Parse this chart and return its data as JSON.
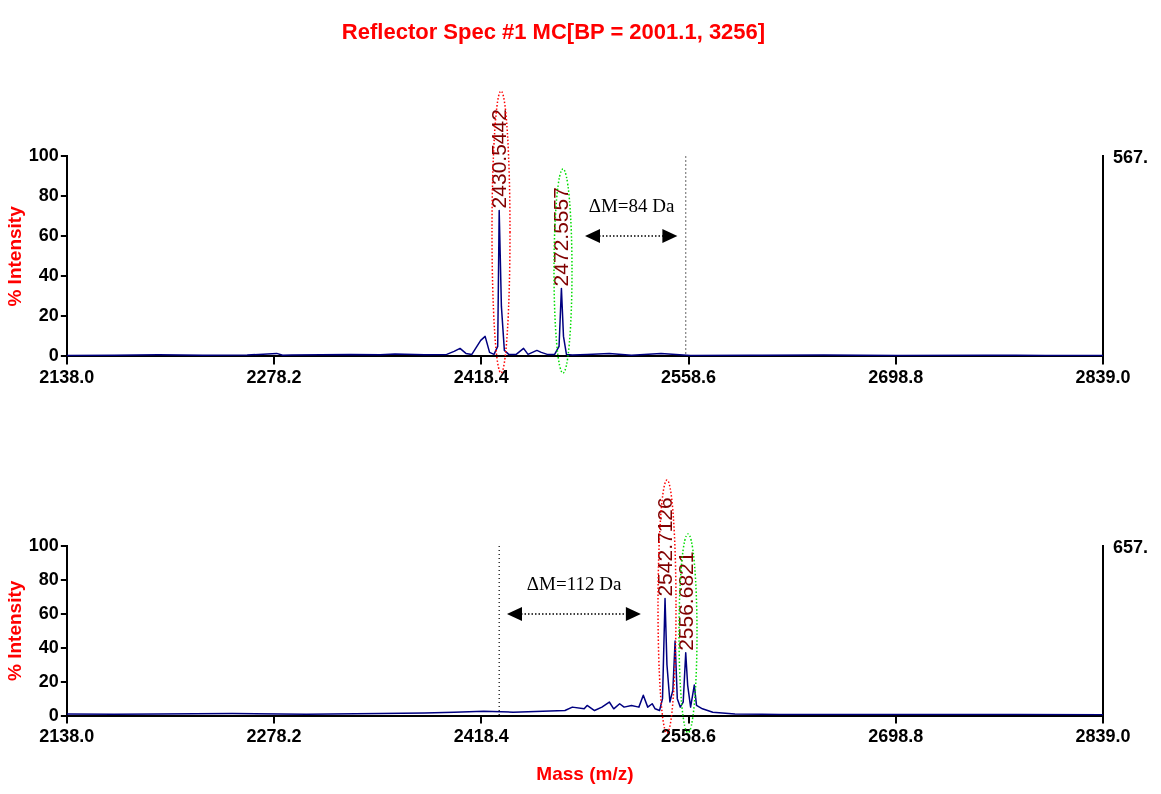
{
  "chart_data": [
    {
      "type": "line",
      "title": "Reflector Spec #1 MC[BP = 2001.1, 3256]",
      "ylabel": "% Intensity",
      "xlim": [
        2138,
        2839
      ],
      "xticks": [
        {
          "value": 2138,
          "label": "2138.0"
        },
        {
          "value": 2278.2,
          "label": "2278.2"
        },
        {
          "value": 2418.4,
          "label": "2418.4"
        },
        {
          "value": 2558.6,
          "label": "2558.6"
        },
        {
          "value": 2698.8,
          "label": "2698.8"
        },
        {
          "value": 2839,
          "label": "2839.0"
        }
      ],
      "ylim": [
        0,
        100
      ],
      "yticks": [
        0,
        20,
        40,
        60,
        80,
        100
      ],
      "y2label": "567.",
      "grid": false,
      "legend": false,
      "marker": "none",
      "series": [
        {
          "color": "#000080",
          "x": [
            2138,
            2170,
            2200,
            2230,
            2260,
            2280,
            2284,
            2290,
            2330,
            2350,
            2360,
            2380,
            2395,
            2400,
            2404,
            2408,
            2412,
            2418,
            2421,
            2424,
            2427,
            2429.5,
            2430.5,
            2432,
            2434,
            2437,
            2442,
            2447,
            2450,
            2456,
            2459,
            2463,
            2468,
            2471,
            2472.6,
            2474,
            2476,
            2480,
            2490,
            2505,
            2520,
            2540,
            2560,
            2600,
            2650,
            2700,
            2760,
            2800,
            2839
          ],
          "values": [
            0.5,
            0.6,
            0.8,
            0.6,
            0.7,
            1.5,
            0.6,
            0.7,
            1,
            0.8,
            1.2,
            0.8,
            1,
            2.5,
            4,
            1.5,
            1,
            8,
            10,
            2,
            1,
            5,
            73,
            25,
            3,
            1,
            1,
            4,
            1,
            3,
            2,
            1,
            1,
            5,
            34,
            10,
            1,
            0.7,
            1,
            1.5,
            0.6,
            1.5,
            0.5,
            0.6,
            0.7,
            0.5,
            0.6,
            0.5,
            0.5
          ]
        }
      ],
      "ref_lines": [
        {
          "axis": "x",
          "value": 2556.7,
          "line_style": "dotted",
          "color": "#000000"
        }
      ],
      "annotations": [
        {
          "text": "2430.5442",
          "x": 2430.5442,
          "y": 73
        },
        {
          "text": "2472.5557",
          "x": 2472.5557,
          "y": 34
        },
        "ΔM=84 Da"
      ]
    },
    {
      "type": "line",
      "ylabel": "% Intensity",
      "xlabel": "Mass (m/z)",
      "xlim": [
        2138,
        2839
      ],
      "xticks": [
        {
          "value": 2138,
          "label": "2138.0"
        },
        {
          "value": 2278.2,
          "label": "2278.2"
        },
        {
          "value": 2418.4,
          "label": "2418.4"
        },
        {
          "value": 2558.6,
          "label": "2558.6"
        },
        {
          "value": 2698.8,
          "label": "2698.8"
        },
        {
          "value": 2839,
          "label": "2839.0"
        }
      ],
      "ylim": [
        0,
        100
      ],
      "yticks": [
        0,
        20,
        40,
        60,
        80,
        100
      ],
      "y2label": "657.",
      "grid": false,
      "legend": false,
      "marker": "none",
      "series": [
        {
          "color": "#000080",
          "x": [
            2138,
            2170,
            2200,
            2250,
            2300,
            2350,
            2380,
            2400,
            2420,
            2440,
            2460,
            2475,
            2480,
            2488,
            2490,
            2495,
            2500,
            2505,
            2508,
            2512,
            2515,
            2520,
            2525,
            2528,
            2531,
            2534,
            2536,
            2539,
            2541,
            2542.7,
            2544,
            2546,
            2548,
            2549.5,
            2551,
            2553,
            2555,
            2556.7,
            2558,
            2560,
            2562.5,
            2564,
            2568,
            2575,
            2590,
            2620,
            2700,
            2780,
            2839
          ],
          "values": [
            1,
            0.8,
            1,
            1.2,
            0.8,
            1.2,
            1.5,
            2,
            2.5,
            2,
            2.5,
            3,
            5,
            4,
            6,
            3,
            5,
            8,
            4,
            7,
            5,
            6,
            5,
            12,
            5,
            7,
            4,
            3,
            10,
            69,
            30,
            8,
            15,
            44,
            10,
            5,
            8,
            37,
            18,
            5,
            18,
            6,
            4,
            2,
            1,
            0.7,
            0.6,
            0.6,
            0.5
          ]
        }
      ],
      "ref_lines": [
        {
          "axis": "x",
          "value": 2430.5,
          "line_style": "dotted",
          "color": "#000000"
        }
      ],
      "annotations": [
        {
          "text": "2542.7126",
          "x": 2542.7126,
          "y": 69
        },
        {
          "text": "2556.6821",
          "x": 2556.6821,
          "y": 37
        },
        "ΔM=112 Da"
      ]
    }
  ]
}
